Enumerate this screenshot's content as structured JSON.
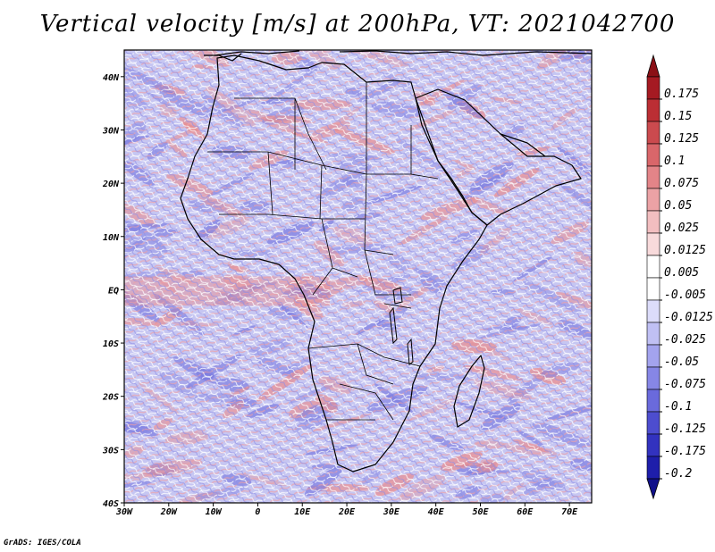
{
  "title": "Vertical velocity [m/s] at 200hPa, VT: 2021042700",
  "footer": "GrADS: IGES/COLA",
  "map": {
    "lon_range": [
      -30,
      75
    ],
    "lat_range": [
      -40,
      45
    ],
    "lat_ticks": [
      {
        "value": 40,
        "label": "40N"
      },
      {
        "value": 30,
        "label": "30N"
      },
      {
        "value": 20,
        "label": "20N"
      },
      {
        "value": 10,
        "label": "10N"
      },
      {
        "value": 0,
        "label": "EQ"
      },
      {
        "value": -10,
        "label": "10S"
      },
      {
        "value": -20,
        "label": "20S"
      },
      {
        "value": -30,
        "label": "30S"
      },
      {
        "value": -40,
        "label": "40S"
      }
    ],
    "lon_ticks": [
      {
        "value": -30,
        "label": "30W"
      },
      {
        "value": -20,
        "label": "20W"
      },
      {
        "value": -10,
        "label": "10W"
      },
      {
        "value": 0,
        "label": "0"
      },
      {
        "value": 10,
        "label": "10E"
      },
      {
        "value": 20,
        "label": "20E"
      },
      {
        "value": 30,
        "label": "30E"
      },
      {
        "value": 40,
        "label": "40E"
      },
      {
        "value": 50,
        "label": "50E"
      },
      {
        "value": 60,
        "label": "60E"
      },
      {
        "value": 70,
        "label": "70E"
      }
    ]
  },
  "colorbar": {
    "labels": [
      "0.175",
      "0.15",
      "0.125",
      "0.1",
      "0.075",
      "0.05",
      "0.025",
      "0.0125",
      "0.005",
      "-0.005",
      "-0.0125",
      "-0.025",
      "-0.05",
      "-0.075",
      "-0.1",
      "-0.125",
      "-0.175",
      "-0.2"
    ],
    "colors": [
      "#a51a22",
      "#bb2e34",
      "#cb4a4e",
      "#d9666a",
      "#e38488",
      "#eba2a5",
      "#f2bec0",
      "#f8dadb",
      "#ffffff",
      "#ffffff",
      "#dcdcfa",
      "#c0c0f4",
      "#a3a3ee",
      "#8686e6",
      "#6a6adc",
      "#4d4dcf",
      "#3232bf",
      "#1e1eaa"
    ],
    "top_arrow_color": "#8b1016",
    "bottom_arrow_color": "#10108a"
  },
  "field_colors": {
    "ocean_base": "#c6c6f2",
    "land_base": "#d8cfee",
    "red_accent": "#e88a8c",
    "blue_accent": "#7a7ae0"
  }
}
